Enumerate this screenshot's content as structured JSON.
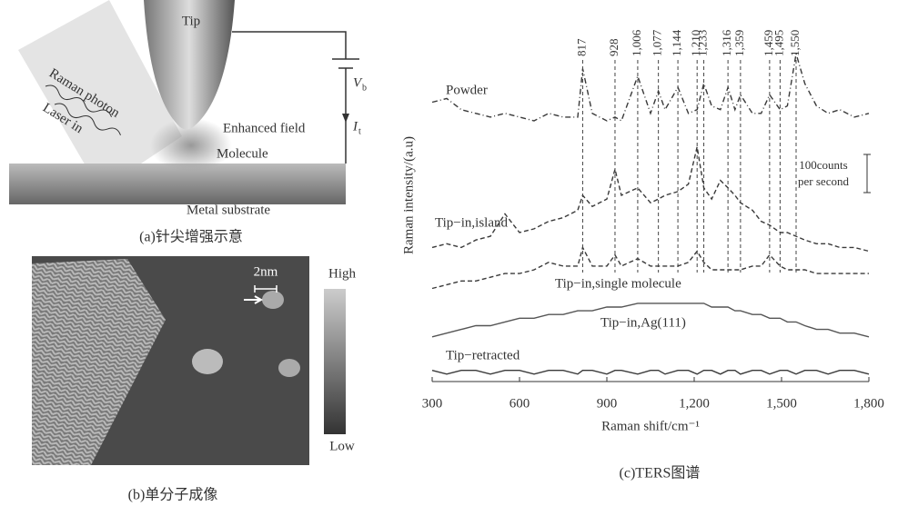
{
  "panel_a": {
    "caption": "(a)针尖增强示意",
    "tip": "Tip",
    "raman_photon": "Raman photon",
    "laser_in": "Laser in",
    "enhanced_field": "Enhanced field",
    "molecule": "Molecule",
    "metal_substrate": "Metal substrate",
    "vb": "V",
    "vb_sub": "b",
    "it": "I",
    "it_sub": "t"
  },
  "panel_b": {
    "caption": "(b)单分子成像",
    "scale": "2nm",
    "high": "High",
    "low": "Low"
  },
  "chart_data": {
    "type": "line",
    "caption": "(c)TERS图谱",
    "xlabel": "Raman shift/cm⁻¹",
    "ylabel": "Raman intensity/(a.u)",
    "xlim": [
      300,
      1800
    ],
    "xticks": [
      300,
      600,
      900,
      {
        "value": 1200,
        "label": "1,200"
      },
      {
        "value": 1500,
        "label": "1,500"
      },
      {
        "value": 1800,
        "label": "1,800"
      }
    ],
    "ylim": [
      0,
      100
    ],
    "x": [
      300,
      350,
      400,
      450,
      500,
      550,
      600,
      650,
      700,
      750,
      800,
      817,
      850,
      900,
      928,
      950,
      1006,
      1050,
      1077,
      1100,
      1144,
      1180,
      1210,
      1233,
      1260,
      1290,
      1316,
      1340,
      1359,
      1400,
      1430,
      1459,
      1495,
      1520,
      1550,
      1580,
      1620,
      1660,
      1700,
      1750,
      1800
    ],
    "series": [
      {
        "name": "Powder",
        "color": "#3a3a3a",
        "style": "dashdot",
        "values": [
          75,
          76,
          73,
          72,
          71,
          72,
          71,
          70,
          72,
          71,
          71,
          84,
          72,
          70,
          71,
          70,
          82,
          72,
          78,
          73,
          79,
          72,
          73,
          80,
          74,
          73,
          79,
          73,
          77,
          72,
          72,
          77,
          73,
          74,
          88,
          80,
          74,
          72,
          73,
          71,
          72
        ]
      },
      {
        "name": "Tip−in,island",
        "color": "#3a3a3a",
        "style": "dashed",
        "values": [
          36,
          37,
          36,
          38,
          39,
          45,
          40,
          41,
          43,
          44,
          46,
          50,
          47,
          49,
          57,
          50,
          52,
          48,
          49,
          50,
          51,
          53,
          63,
          52,
          49,
          54,
          52,
          50,
          48,
          46,
          43,
          42,
          40,
          40,
          39,
          38,
          37,
          37,
          36,
          36,
          35
        ]
      },
      {
        "name": "Tip−in,single molecule",
        "color": "#3a3a3a",
        "style": "dashed",
        "values": [
          25,
          26,
          27,
          27,
          28,
          29,
          29,
          30,
          32,
          31,
          31,
          36,
          31,
          31,
          34,
          31,
          33,
          31,
          31,
          31,
          31,
          32,
          35,
          32,
          30,
          30,
          30,
          30,
          30,
          31,
          31,
          34,
          31,
          30,
          30,
          30,
          29,
          29,
          29,
          29,
          29
        ]
      },
      {
        "name": "Tip−in,Ag(111)",
        "color": "#555555",
        "style": "solid",
        "values": [
          12,
          13,
          14,
          15,
          15,
          16,
          17,
          17,
          18,
          18,
          19,
          19,
          19,
          20,
          20,
          20,
          21,
          21,
          21,
          21,
          21,
          21,
          21,
          21,
          20,
          20,
          20,
          19,
          19,
          18,
          18,
          17,
          17,
          16,
          16,
          15,
          14,
          14,
          13,
          13,
          12
        ]
      },
      {
        "name": "Tip−retracted",
        "color": "#3a3a3a",
        "style": "solid",
        "values": [
          3,
          2,
          3,
          3,
          2,
          3,
          3,
          2,
          3,
          3,
          2,
          3,
          3,
          2,
          3,
          3,
          2,
          3,
          3,
          2,
          3,
          3,
          2,
          3,
          3,
          2,
          3,
          3,
          2,
          3,
          3,
          2,
          3,
          3,
          2,
          3,
          3,
          2,
          3,
          3,
          2
        ]
      }
    ],
    "peaks": [
      {
        "value": 817,
        "label": "817"
      },
      {
        "value": 928,
        "label": "928"
      },
      {
        "value": 1006,
        "label": "1,006"
      },
      {
        "value": 1077,
        "label": "1,077"
      },
      {
        "value": 1144,
        "label": "1,144"
      },
      {
        "value": 1210,
        "label": "1,210"
      },
      {
        "value": 1233,
        "label": "1,233"
      },
      {
        "value": 1316,
        "label": "1,316"
      },
      {
        "value": 1359,
        "label": "1,359"
      },
      {
        "value": 1459,
        "label": "1,459"
      },
      {
        "value": 1495,
        "label": "1,495"
      },
      {
        "value": 1550,
        "label": "1,550"
      }
    ],
    "scale_bar": [
      "100counts",
      "per second"
    ]
  }
}
